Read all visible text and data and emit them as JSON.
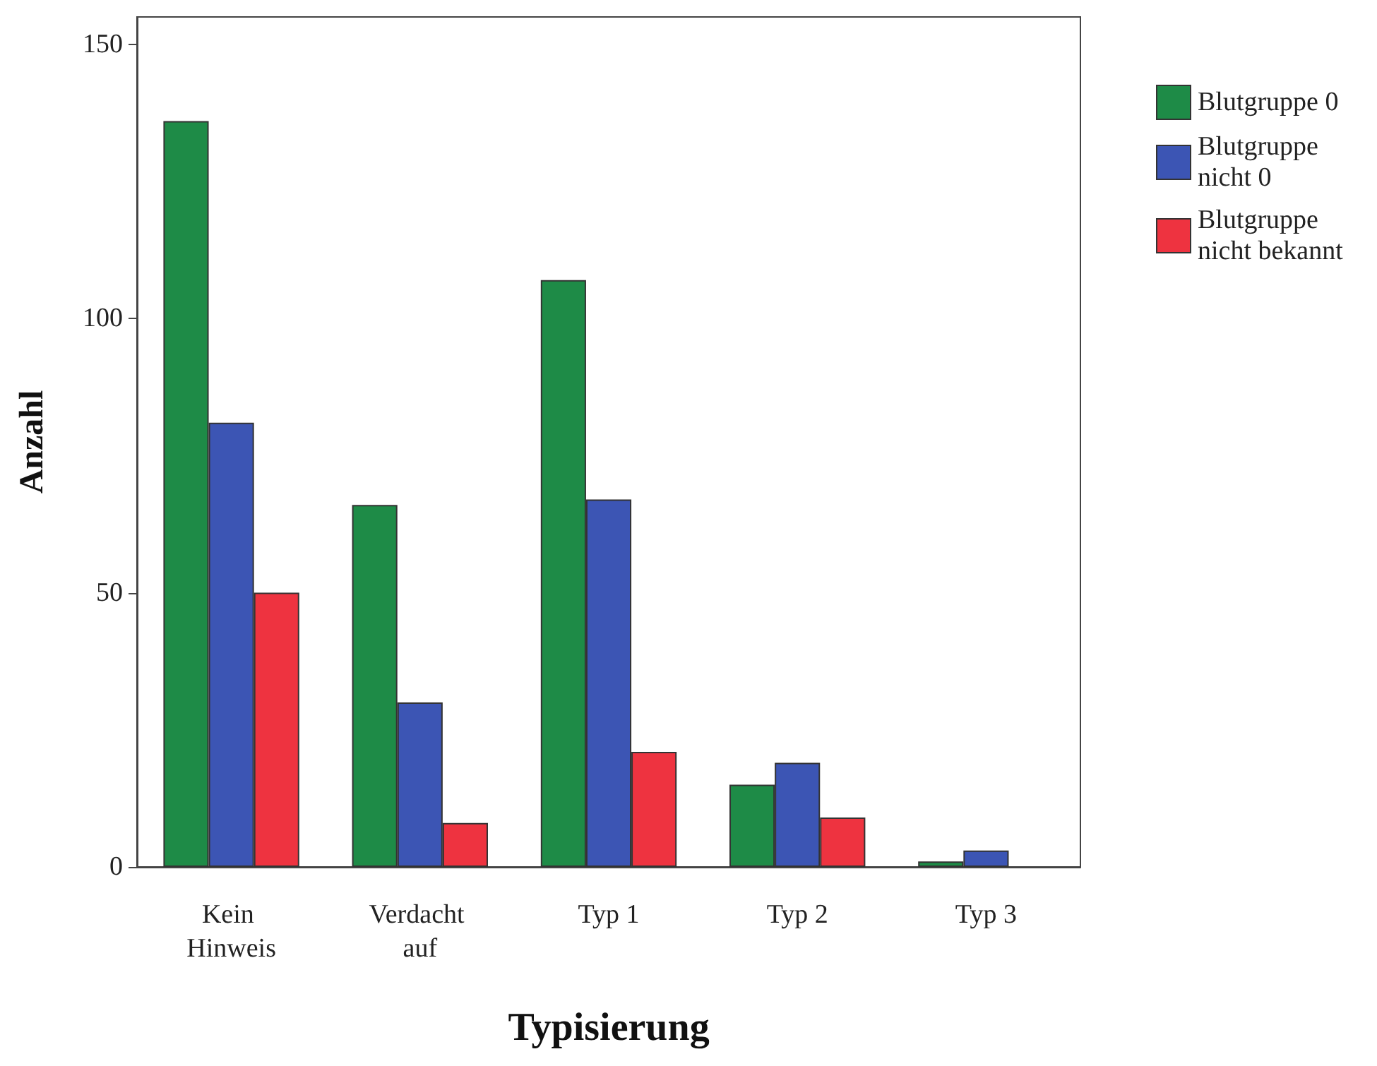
{
  "chart_data": {
    "type": "bar",
    "xlabel": "Typisierung",
    "ylabel": "Anzahl",
    "categories": [
      "Kein Hinweis",
      "Verdacht auf",
      "Typ 1",
      "Typ 2",
      "Typ 3"
    ],
    "series": [
      {
        "name": "Blutgruppe 0",
        "color": "#1e8b47",
        "values": [
          136,
          66,
          107,
          15,
          1
        ]
      },
      {
        "name": "Blutgruppe nicht 0",
        "color": "#3c55b4",
        "values": [
          81,
          30,
          67,
          19,
          3
        ]
      },
      {
        "name": "Blutgruppe nicht bekannt",
        "color": "#ee3340",
        "values": [
          50,
          8,
          21,
          9,
          null
        ]
      }
    ],
    "ylim": [
      0,
      155
    ],
    "yticks": [
      0,
      50,
      100,
      150
    ],
    "grid": false,
    "legend": "top right"
  }
}
